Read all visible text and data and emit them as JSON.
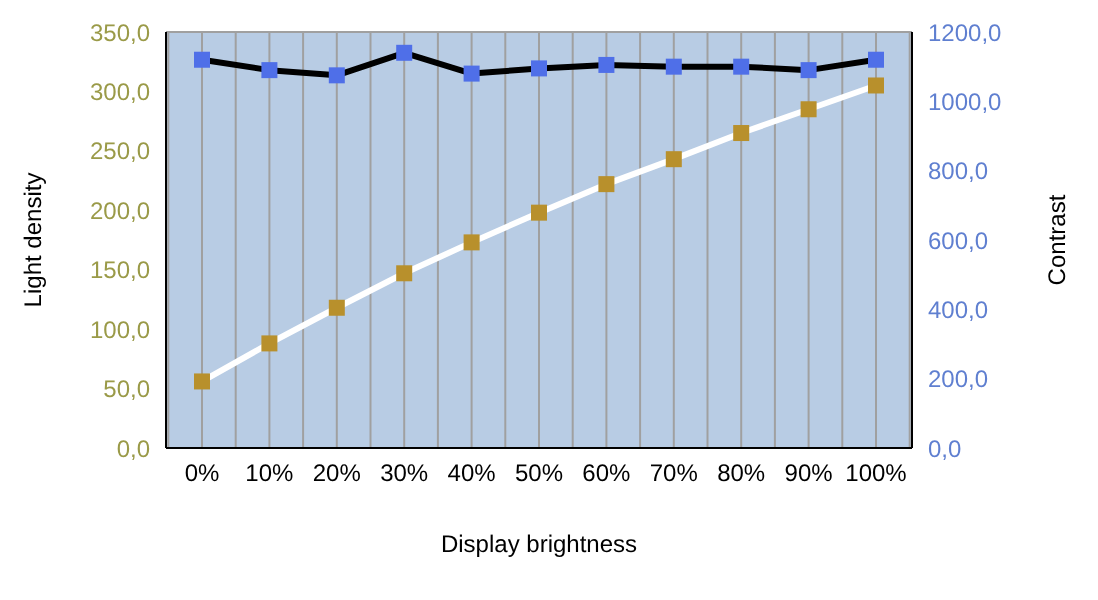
{
  "chart_data": {
    "type": "line",
    "xlabel": "Display brightness",
    "ylabel": "Light  density",
    "y2label": "Contrast",
    "categories": [
      "0%",
      "10%",
      "20%",
      "30%",
      "40%",
      "50%",
      "60%",
      "70%",
      "80%",
      "90%",
      "100%"
    ],
    "series": [
      {
        "color": "#ffffff",
        "colors": [
          "#b8902c",
          "#b8902c",
          "#b8902c",
          "#b8902c",
          "#b8902c",
          "#b8902c",
          "#b8902c",
          "#b8902c",
          "#b8902c",
          "#b8902c",
          "#b8902c"
        ],
        "values": [
          56,
          88,
          118,
          147,
          173,
          198,
          222,
          243,
          265,
          285,
          305
        ]
      },
      {
        "color": "#000000",
        "colors": [
          "#4f6fe8",
          "#4f6fe8",
          "#4f6fe8",
          "#4f6fe8",
          "#4f6fe8",
          "#4f6fe8",
          "#4f6fe8",
          "#4f6fe8",
          "#4f6fe8",
          "#4f6fe8",
          "#4f6fe8"
        ],
        "axis": "y2",
        "values": [
          1120,
          1090,
          1075,
          1140,
          1080,
          1095,
          1105,
          1100,
          1100,
          1090,
          1120
        ]
      }
    ],
    "ylim": [
      0,
      350
    ],
    "yticks": [
      {
        "value": 0,
        "label": "0,0"
      },
      {
        "value": 50,
        "label": "50,0"
      },
      {
        "value": 100,
        "label": "100,0"
      },
      {
        "value": 150,
        "label": "150,0"
      },
      {
        "value": 200,
        "label": "200,0"
      },
      {
        "value": 250,
        "label": "250,0"
      },
      {
        "value": 300,
        "label": "300,0"
      },
      {
        "value": 350,
        "label": "350,0"
      }
    ],
    "y2lim": [
      0,
      1200
    ],
    "y2ticks": [
      {
        "value": 0,
        "label": "0,0"
      },
      {
        "value": 200,
        "label": "200,0"
      },
      {
        "value": 400,
        "label": "400,0"
      },
      {
        "value": 600,
        "label": "600,0"
      },
      {
        "value": 800,
        "label": "800,0"
      },
      {
        "value": 1000,
        "label": "1000,0"
      },
      {
        "value": 1200,
        "label": "1200,0"
      }
    ],
    "grid": true,
    "marker": "square",
    "line_style": "solid",
    "legend": false
  }
}
